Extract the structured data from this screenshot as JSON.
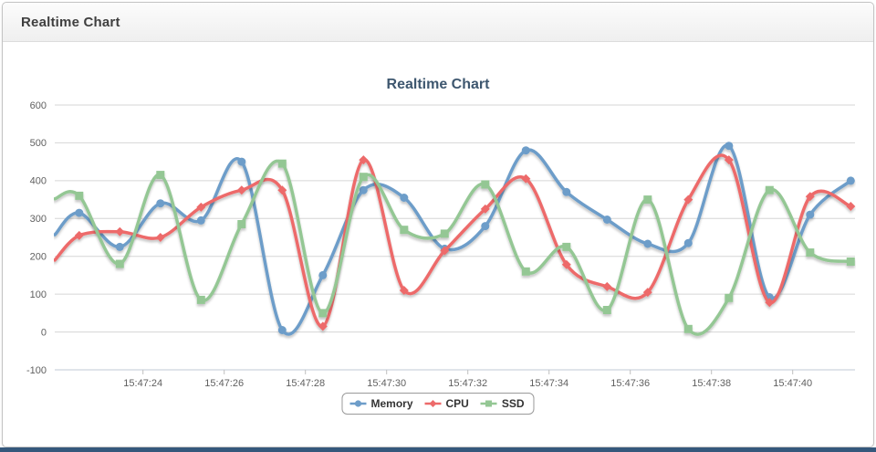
{
  "panel": {
    "title": "Realtime Chart"
  },
  "colors": {
    "chart_title": "#3E576F",
    "axis_label": "#606060",
    "grid_line": "#D6D6D6",
    "axis_line": "#C0CAD4",
    "tick_mark": "#C0C0C0",
    "header_text": "#3F3F3F",
    "card_border": "#C4C4C4",
    "legend_border": "#9A9A9A",
    "legend_text": "#333333",
    "footer_bar": "#35587C"
  },
  "chart_data": {
    "type": "line",
    "subtype": "spline-realtime",
    "title": "Realtime Chart",
    "grid": "horizontal",
    "legend_position": "bottom-center",
    "time_base": "15:47",
    "x_tick_labels": [
      "15:47:24",
      "15:47:26",
      "15:47:28",
      "15:47:30",
      "15:47:32",
      "15:47:34",
      "15:47:36",
      "15:47:38",
      "15:47:40"
    ],
    "x_tick_seconds": [
      24,
      26,
      28,
      30,
      32,
      34,
      36,
      38,
      40
    ],
    "y_ticks": [
      600,
      500,
      400,
      300,
      200,
      100,
      0,
      -100
    ],
    "ylim": [
      -100,
      600
    ],
    "point_interval_seconds": 1,
    "start_second": 22.43,
    "series": [
      {
        "name": "Memory",
        "color": "#6D9DC9",
        "marker": "circle",
        "edge_value": 257,
        "values": [
          315,
          225,
          340,
          295,
          450,
          5,
          150,
          375,
          355,
          220,
          280,
          480,
          370,
          297,
          233,
          235,
          492,
          92,
          310,
          400
        ]
      },
      {
        "name": "CPU",
        "color": "#ED6A6A",
        "marker": "diamond",
        "edge_value": 190,
        "values": [
          255,
          265,
          250,
          330,
          375,
          375,
          15,
          455,
          110,
          215,
          325,
          405,
          178,
          120,
          105,
          350,
          455,
          78,
          358,
          332
        ]
      },
      {
        "name": "SSD",
        "color": "#94C794",
        "marker": "square",
        "edge_value": 352,
        "values": [
          360,
          180,
          415,
          85,
          285,
          445,
          50,
          410,
          270,
          260,
          390,
          160,
          225,
          58,
          350,
          8,
          90,
          375,
          210,
          186
        ]
      }
    ]
  }
}
